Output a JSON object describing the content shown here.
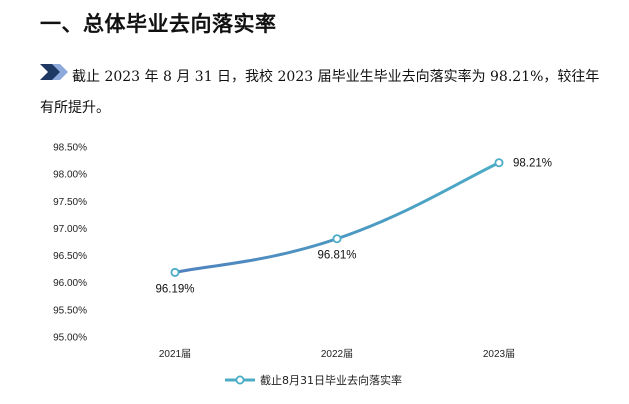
{
  "document": {
    "heading": "一、总体毕业去向落实率",
    "paragraph": "截止 2023 年 8 月 31 日，我校 2023 届毕业生毕业去向落实率为 98.21%，较往年有所提升。",
    "bullet_icon": "double-chevron-icon"
  },
  "chart_data": {
    "type": "line",
    "categories": [
      "2021届",
      "2022届",
      "2023届"
    ],
    "series": [
      {
        "name": "截止8月31日毕业去向落实率",
        "values": [
          96.19,
          96.81,
          98.21
        ],
        "labels": [
          "96.19%",
          "96.81%",
          "98.21%"
        ],
        "color": "#4bacc6"
      }
    ],
    "ylim": [
      95.0,
      98.5
    ],
    "yticks": [
      95.0,
      95.5,
      96.0,
      96.5,
      97.0,
      97.5,
      98.0,
      98.5
    ],
    "ytick_labels": [
      "95.00%",
      "95.50%",
      "96.00%",
      "96.50%",
      "97.00%",
      "97.50%",
      "98.00%",
      "98.50%"
    ],
    "grid": false,
    "legend": "bottom",
    "line_colors": [
      "#4f81bd",
      "#4bacc6"
    ]
  }
}
